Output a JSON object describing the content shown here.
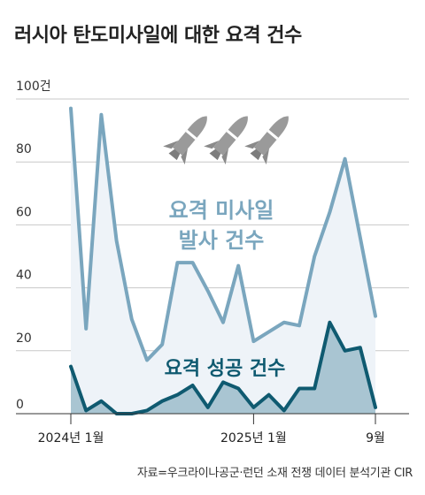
{
  "title": "러시아 탄도미사일에 대한 요격 건수",
  "source": "자료=우크라이나공군·런던 소재 전쟁 데이터 분석기관 CIR",
  "chart_data": {
    "type": "area",
    "ylim": [
      0,
      100
    ],
    "yticks": [
      {
        "value": 100,
        "label": "100건"
      },
      {
        "value": 80,
        "label": "80"
      },
      {
        "value": 60,
        "label": "60"
      },
      {
        "value": 40,
        "label": "40"
      },
      {
        "value": 20,
        "label": "20"
      },
      {
        "value": 0,
        "label": "0"
      }
    ],
    "xlabels": [
      {
        "index": 0,
        "label": "2024년 1월"
      },
      {
        "index": 12,
        "label": "2025년 1월"
      },
      {
        "index": 20,
        "label": "9월"
      }
    ],
    "series": [
      {
        "annotation": [
          "요격 미사일",
          "발사 건수"
        ],
        "color": "#7aa6be",
        "fill": "#eef3f8",
        "values": [
          97,
          27,
          95,
          55,
          30,
          17,
          22,
          48,
          48,
          39,
          29,
          47,
          23,
          26,
          29,
          28,
          50,
          64,
          81,
          56,
          31
        ]
      },
      {
        "annotation": [
          "요격 성공 건수"
        ],
        "color": "#0f5a70",
        "fill": "#a9c5d2",
        "values": [
          15,
          1,
          4,
          0,
          0,
          1,
          4,
          6,
          9,
          2,
          10,
          8,
          2,
          6,
          1,
          8,
          8,
          29,
          20,
          21,
          2
        ]
      }
    ]
  }
}
